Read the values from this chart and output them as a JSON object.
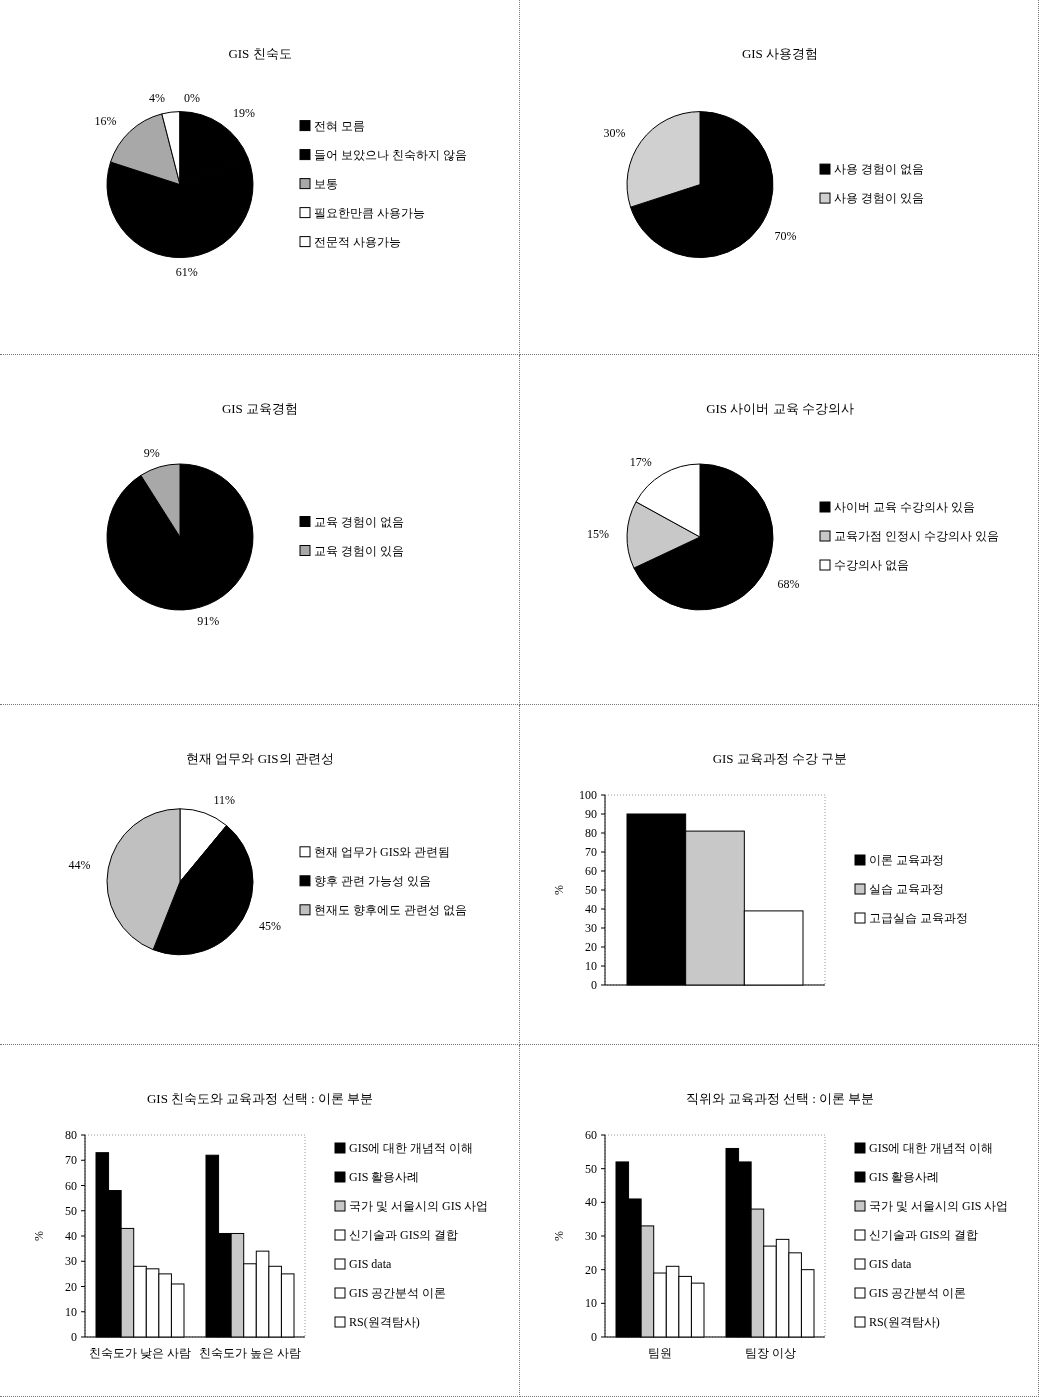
{
  "chart_data": [
    {
      "type": "pie",
      "title": "GIS 친숙도",
      "categories": [
        "전혀 모름",
        "들어 보았으나 친숙하지 않음",
        "보통",
        "필요한만큼 사용가능",
        "전문적 사용가능"
      ],
      "values": [
        19,
        61,
        16,
        4,
        0
      ],
      "value_labels": [
        "19%",
        "61%",
        "16%",
        "4%",
        "0%"
      ],
      "colors": [
        "#000000",
        "#000000",
        "#a8a8a8",
        "#ffffff",
        "#ffffff"
      ],
      "data_labels": true,
      "legend": "right"
    },
    {
      "type": "pie",
      "title": "GIS 사용경험",
      "categories": [
        "사용 경험이 없음",
        "사용 경험이 있음"
      ],
      "values": [
        70,
        30
      ],
      "value_labels": [
        "70%",
        "30%"
      ],
      "colors": [
        "#000000",
        "#d0d0d0"
      ],
      "data_labels": true,
      "legend": "right"
    },
    {
      "type": "pie",
      "title": "GIS 교육경험",
      "categories": [
        "교육 경험이 없음",
        "교육 경험이 있음"
      ],
      "values": [
        91,
        9
      ],
      "value_labels": [
        "91%",
        "9%"
      ],
      "colors": [
        "#000000",
        "#a8a8a8"
      ],
      "data_labels": true,
      "legend": "right"
    },
    {
      "type": "pie",
      "title": "GIS 사이버 교육 수강의사",
      "categories": [
        "사이버 교육 수강의사 있음",
        "교육가점 인정시 수강의사 있음",
        "수강의사 없음"
      ],
      "values": [
        68,
        15,
        17
      ],
      "value_labels": [
        "68%",
        "15%",
        "17%"
      ],
      "colors": [
        "#000000",
        "#c8c8c8",
        "#ffffff"
      ],
      "data_labels": true,
      "legend": "right"
    },
    {
      "type": "pie",
      "title": "현재 업무와 GIS의 관련성",
      "categories": [
        "현재 업무가 GIS와 관련됨",
        "향후 관련 가능성 있음",
        "현재도 향후에도 관련성 없음"
      ],
      "values": [
        11,
        45,
        44
      ],
      "value_labels": [
        "11%",
        "45%",
        "44%"
      ],
      "colors": [
        "#ffffff",
        "#000000",
        "#c0c0c0"
      ],
      "data_labels": true,
      "legend": "right"
    },
    {
      "type": "bar",
      "title": "GIS 교육과정 수강 구분",
      "ylabel": "%",
      "categories": [
        null
      ],
      "ylim": [
        0,
        100
      ],
      "yticks": [
        0,
        10,
        20,
        30,
        40,
        50,
        60,
        70,
        80,
        90,
        100
      ],
      "legend": "right",
      "series": [
        {
          "name": "이론 교육과정",
          "color": "#000000",
          "values": [
            90
          ]
        },
        {
          "name": "실습 교육과정",
          "color": "#c8c8c8",
          "values": [
            81
          ]
        },
        {
          "name": "고급실습 교육과정",
          "color": "#ffffff",
          "values": [
            39
          ]
        }
      ]
    },
    {
      "type": "bar",
      "title": "GIS 친숙도와 교육과정 선택 : 이론 부분",
      "ylabel": "%",
      "categories": [
        "친숙도가 낮은 사람",
        "친숙도가 높은 사람"
      ],
      "ylim": [
        0,
        80
      ],
      "yticks": [
        0,
        10,
        20,
        30,
        40,
        50,
        60,
        70,
        80
      ],
      "legend": "right",
      "series": [
        {
          "name": "GIS에 대한 개념적 이해",
          "color": "#000000",
          "values": [
            73,
            72
          ]
        },
        {
          "name": "GIS 활용사례",
          "color": "#000000",
          "values": [
            58,
            41
          ]
        },
        {
          "name": "국가 및 서울시의 GIS 사업",
          "color": "#c8c8c8",
          "values": [
            43,
            41
          ]
        },
        {
          "name": "신기술과 GIS의 결합",
          "color": "#ffffff",
          "values": [
            28,
            29
          ]
        },
        {
          "name": "GIS data",
          "color": "#ffffff",
          "values": [
            27,
            34
          ]
        },
        {
          "name": "GIS 공간분석 이론",
          "color": "#ffffff",
          "values": [
            25,
            28
          ]
        },
        {
          "name": "RS(원격탐사)",
          "color": "#ffffff",
          "values": [
            21,
            25
          ]
        }
      ]
    },
    {
      "type": "bar",
      "title": "직위와 교육과정 선택 : 이론 부분",
      "ylabel": "%",
      "categories": [
        "팀원",
        "팀장 이상"
      ],
      "ylim": [
        0,
        60
      ],
      "yticks": [
        0,
        10,
        20,
        30,
        40,
        50,
        60
      ],
      "legend": "right",
      "series": [
        {
          "name": "GIS에 대한 개념적 이해",
          "color": "#000000",
          "values": [
            52,
            56
          ]
        },
        {
          "name": "GIS 활용사례",
          "color": "#000000",
          "values": [
            41,
            52
          ]
        },
        {
          "name": "국가 및 서울시의 GIS 사업",
          "color": "#c8c8c8",
          "values": [
            33,
            38
          ]
        },
        {
          "name": "신기술과 GIS의 결합",
          "color": "#ffffff",
          "values": [
            19,
            27
          ]
        },
        {
          "name": "GIS data",
          "color": "#ffffff",
          "values": [
            21,
            29
          ]
        },
        {
          "name": "GIS 공간분석 이론",
          "color": "#ffffff",
          "values": [
            18,
            25
          ]
        },
        {
          "name": "RS(원격탐사)",
          "color": "#ffffff",
          "values": [
            16,
            20
          ]
        }
      ]
    }
  ]
}
